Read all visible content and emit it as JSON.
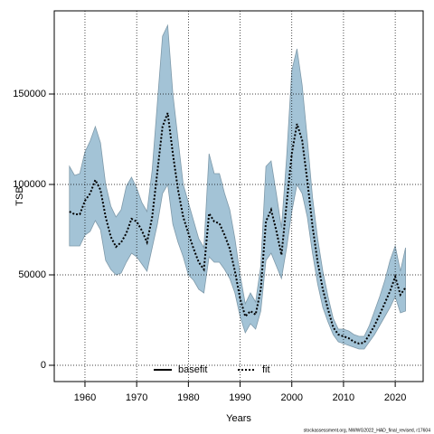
{
  "chart_data": {
    "type": "line",
    "x_label": "Years",
    "y_label": "TSB",
    "footnote": "stockassessment.org, NWWG2022_HAD_final_revised, r17604",
    "x": [
      1957,
      1958,
      1959,
      1960,
      1961,
      1962,
      1963,
      1964,
      1965,
      1966,
      1967,
      1968,
      1969,
      1970,
      1971,
      1972,
      1973,
      1974,
      1975,
      1976,
      1977,
      1978,
      1979,
      1980,
      1981,
      1982,
      1983,
      1984,
      1985,
      1986,
      1987,
      1988,
      1989,
      1990,
      1991,
      1992,
      1993,
      1994,
      1995,
      1996,
      1997,
      1998,
      1999,
      2000,
      2001,
      2002,
      2003,
      2004,
      2005,
      2006,
      2007,
      2008,
      2009,
      2010,
      2011,
      2012,
      2013,
      2014,
      2015,
      2016,
      2017,
      2018,
      2019,
      2020,
      2021,
      2022
    ],
    "series": [
      {
        "name": "fit",
        "color": "#000000",
        "values": [
          85000,
          83500,
          83500,
          91000,
          95000,
          102500,
          97000,
          82000,
          71000,
          65500,
          68000,
          73000,
          81000,
          79500,
          74500,
          68000,
          82000,
          107000,
          132000,
          139500,
          117000,
          97000,
          82000,
          73000,
          64500,
          57000,
          53000,
          84000,
          79500,
          78500,
          72000,
          64500,
          52000,
          37000,
          27000,
          30000,
          28000,
          42000,
          79500,
          86000,
          74500,
          61000,
          89500,
          117000,
          133500,
          124500,
          102000,
          77000,
          57000,
          42000,
          31000,
          21000,
          17000,
          16000,
          15000,
          13000,
          12000,
          12500,
          17000,
          22000,
          28000,
          34500,
          41000,
          49000,
          39000,
          43000
        ],
        "lower": [
          66000,
          66000,
          66000,
          72000,
          74000,
          80000,
          75000,
          58000,
          53000,
          50000,
          51000,
          57000,
          62000,
          60000,
          56000,
          52000,
          65000,
          78000,
          95000,
          100000,
          78000,
          68000,
          60000,
          50000,
          47000,
          42000,
          40000,
          60000,
          57000,
          57000,
          53000,
          48000,
          40000,
          27000,
          18000,
          23000,
          20000,
          30000,
          58000,
          62000,
          55000,
          48000,
          65000,
          85000,
          100000,
          95000,
          82000,
          62000,
          45000,
          32000,
          24000,
          17000,
          13000,
          12000,
          11000,
          10000,
          9000,
          9000,
          13000,
          17000,
          22000,
          27000,
          32000,
          38000,
          29000,
          30000
        ],
        "upper": [
          110000,
          105000,
          106000,
          118000,
          124000,
          132000,
          123000,
          100000,
          88000,
          82000,
          86000,
          99000,
          104000,
          98000,
          90000,
          85000,
          108000,
          145000,
          182000,
          188000,
          150000,
          125000,
          100000,
          90000,
          80000,
          70000,
          65000,
          117000,
          106000,
          106000,
          95000,
          86000,
          70000,
          50000,
          34000,
          40000,
          35000,
          55000,
          110000,
          113000,
          95000,
          76000,
          115000,
          163000,
          175000,
          155000,
          125000,
          93000,
          70000,
          52000,
          38000,
          26000,
          20000,
          20000,
          19000,
          17000,
          16000,
          16000,
          22000,
          30000,
          38000,
          47000,
          58000,
          66000,
          52000,
          65000
        ],
        "band_color": "#a3c3d6"
      }
    ],
    "legend": [
      {
        "name": "basefit",
        "style": "solid",
        "color": "#000000"
      },
      {
        "name": "fit",
        "style": "dotted",
        "color": "#000000"
      }
    ],
    "legend_position": "bottom",
    "xlim": [
      1954.06,
      2025.4
    ],
    "xticks": [
      1960,
      1970,
      1980,
      1990,
      2000,
      2010,
      2020
    ],
    "ylim": [
      -9000,
      196000
    ],
    "yticks": [
      0,
      50000,
      100000,
      150000
    ],
    "grid": true
  }
}
